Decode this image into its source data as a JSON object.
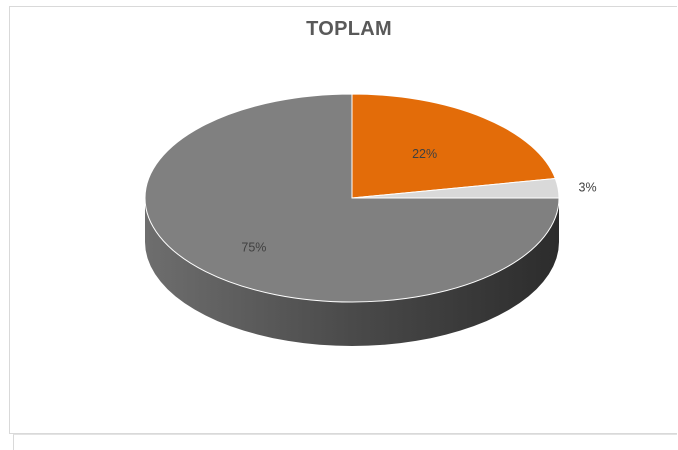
{
  "chart_data": {
    "type": "pie",
    "title": "TOPLAM",
    "slices": [
      {
        "label": "22%",
        "value": 22,
        "color": "#e36c09",
        "side_color": "#b05306"
      },
      {
        "label": "3%",
        "value": 3,
        "color": "#d9d9d9",
        "side_color": "#a6a6a6"
      },
      {
        "label": "75%",
        "value": 75,
        "color": "#808080",
        "side_color": "#4d4d4d"
      }
    ],
    "style": "3d",
    "legend": "none"
  }
}
